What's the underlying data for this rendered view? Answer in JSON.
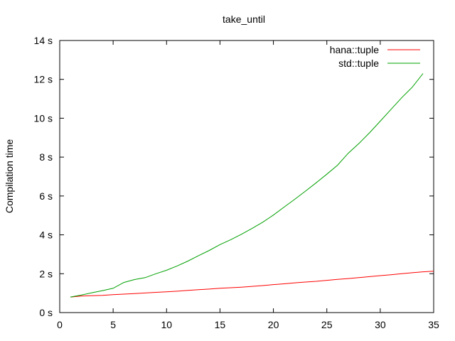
{
  "chart_data": {
    "type": "line",
    "title": "take_until",
    "xlabel": "",
    "ylabel": "Compilation time",
    "xlim": [
      0,
      35
    ],
    "ylim": [
      0,
      14
    ],
    "xticks": [
      0,
      5,
      10,
      15,
      20,
      25,
      30,
      35
    ],
    "yticks": [
      0,
      2,
      4,
      6,
      8,
      10,
      12,
      14
    ],
    "ytick_labels": [
      "0 s",
      "2 s",
      "4 s",
      "6 s",
      "8 s",
      "10 s",
      "12 s",
      "14 s"
    ],
    "grid": false,
    "legend_position": "top-right",
    "series": [
      {
        "name": "hana::tuple",
        "color": "#ff0000",
        "x": [
          1,
          2,
          3,
          4,
          5,
          6,
          7,
          8,
          9,
          10,
          11,
          12,
          13,
          14,
          15,
          16,
          17,
          18,
          19,
          20,
          21,
          22,
          23,
          24,
          25,
          26,
          27,
          28,
          29,
          30,
          31,
          32,
          33,
          34,
          35
        ],
        "values": [
          0.8,
          0.85,
          0.87,
          0.89,
          0.92,
          0.95,
          0.98,
          1.01,
          1.04,
          1.07,
          1.1,
          1.14,
          1.18,
          1.21,
          1.25,
          1.28,
          1.31,
          1.35,
          1.39,
          1.44,
          1.48,
          1.53,
          1.57,
          1.61,
          1.66,
          1.71,
          1.75,
          1.8,
          1.85,
          1.9,
          1.95,
          2.0,
          2.05,
          2.1,
          2.13
        ]
      },
      {
        "name": "std::tuple",
        "color": "#00a000",
        "x": [
          1,
          2,
          3,
          4,
          5,
          6,
          7,
          8,
          9,
          10,
          11,
          12,
          13,
          14,
          15,
          16,
          17,
          18,
          19,
          20,
          21,
          22,
          23,
          24,
          25,
          26,
          27,
          28,
          29,
          30,
          31,
          32,
          33,
          34
        ],
        "values": [
          0.8,
          0.9,
          1.02,
          1.13,
          1.25,
          1.55,
          1.7,
          1.8,
          2.0,
          2.18,
          2.4,
          2.65,
          2.93,
          3.2,
          3.5,
          3.75,
          4.03,
          4.33,
          4.65,
          5.02,
          5.43,
          5.83,
          6.25,
          6.68,
          7.12,
          7.58,
          8.2,
          8.7,
          9.25,
          9.85,
          10.45,
          11.05,
          11.6,
          12.3
        ]
      }
    ]
  }
}
